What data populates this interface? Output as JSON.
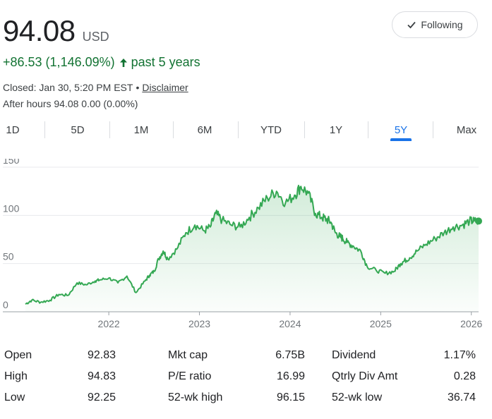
{
  "quote": {
    "price": "94.08",
    "currency": "USD",
    "change_text": "+86.53 (1,146.09%)",
    "change_period": "past 5 years",
    "closed_text": "Closed: Jan 30, 5:20 PM EST",
    "separator": "•",
    "disclaimer": "Disclaimer",
    "after_hours": "After hours 94.08 0.00 (0.00%)"
  },
  "follow_button": {
    "label": "Following",
    "icon": "check-icon"
  },
  "tabs": [
    {
      "label": "1D",
      "active": false
    },
    {
      "label": "5D",
      "active": false
    },
    {
      "label": "1M",
      "active": false
    },
    {
      "label": "6M",
      "active": false
    },
    {
      "label": "YTD",
      "active": false
    },
    {
      "label": "1Y",
      "active": false
    },
    {
      "label": "5Y",
      "active": true
    },
    {
      "label": "Max",
      "active": false
    }
  ],
  "colors": {
    "positive": "#137333",
    "line": "#34a853",
    "accent": "#1a73e8"
  },
  "chart_data": {
    "type": "area",
    "title": "",
    "xlabel": "",
    "ylabel": "",
    "x_ticks": [
      "2022",
      "2023",
      "2024",
      "2025",
      "2026"
    ],
    "y_ticks": [
      "0",
      "50",
      "100",
      "150"
    ],
    "ylim": [
      0,
      150
    ],
    "xlim": [
      2021.08,
      2026.08
    ],
    "grid": true,
    "series": [
      {
        "x": [
          2021.08,
          2021.15,
          2021.25,
          2021.35,
          2021.45,
          2021.55,
          2021.65,
          2021.75,
          2021.85,
          2021.9,
          2022.0,
          2022.1,
          2022.2,
          2022.3,
          2022.4,
          2022.45,
          2022.5,
          2022.55,
          2022.6,
          2022.65,
          2022.75,
          2022.85,
          2022.95,
          2023.05,
          2023.12,
          2023.18,
          2023.25,
          2023.35,
          2023.45,
          2023.55,
          2023.65,
          2023.75,
          2023.85,
          2023.95,
          2024.05,
          2024.12,
          2024.2,
          2024.28,
          2024.35,
          2024.4,
          2024.45,
          2024.5,
          2024.55,
          2024.58,
          2024.63,
          2024.7,
          2024.78,
          2024.85,
          2024.95,
          2025.05,
          2025.15,
          2025.22,
          2025.25,
          2025.32,
          2025.4,
          2025.5,
          2025.6,
          2025.7,
          2025.8,
          2025.9,
          2025.98,
          2026.03,
          2026.08
        ],
        "values": [
          8,
          12,
          10,
          12,
          18,
          17,
          30,
          28,
          32,
          33,
          35,
          30,
          37,
          20,
          32,
          38,
          42,
          55,
          63,
          55,
          65,
          82,
          90,
          84,
          88,
          102,
          95,
          90,
          88,
          98,
          108,
          118,
          125,
          113,
          121,
          130,
          123,
          102,
          98,
          96,
          93,
          82,
          78,
          76,
          72,
          68,
          63,
          47,
          43,
          40,
          42,
          50,
          52,
          56,
          63,
          70,
          76,
          82,
          88,
          90,
          94.08,
          94.08,
          94.08
        ]
      }
    ]
  },
  "stats": [
    [
      {
        "label": "Open",
        "value": "92.83"
      },
      {
        "label": "Mkt cap",
        "value": "6.75B"
      },
      {
        "label": "Dividend",
        "value": "1.17%"
      }
    ],
    [
      {
        "label": "High",
        "value": "94.83"
      },
      {
        "label": "P/E ratio",
        "value": "16.99"
      },
      {
        "label": "Qtrly Div Amt",
        "value": "0.28"
      }
    ],
    [
      {
        "label": "Low",
        "value": "92.25"
      },
      {
        "label": "52-wk high",
        "value": "96.15"
      },
      {
        "label": "52-wk low",
        "value": "36.74"
      }
    ]
  ]
}
